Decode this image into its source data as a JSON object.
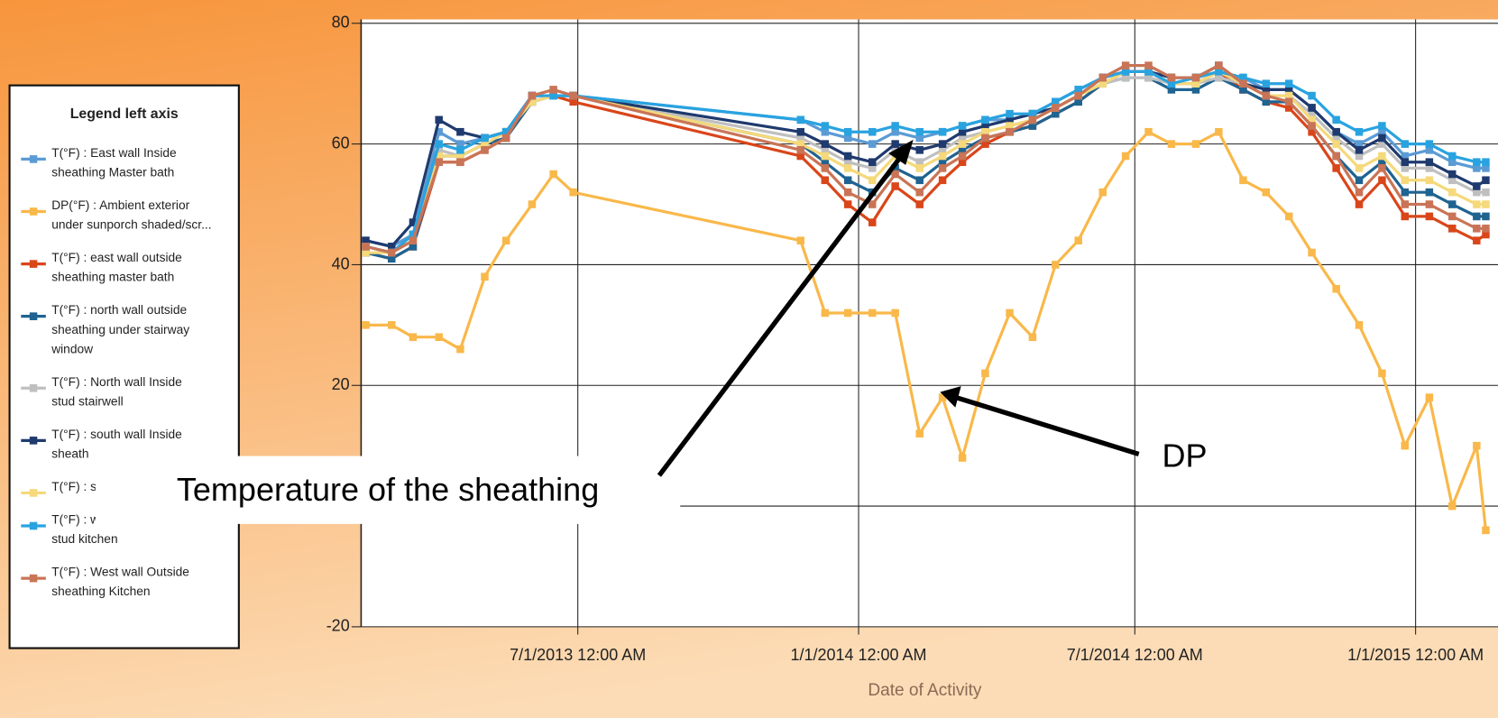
{
  "chart_data": {
    "type": "line",
    "legend_title": "Legend left axis",
    "xlabel": "Date of Activity",
    "annotations": [
      "Temperature of the sheathing",
      "DP"
    ],
    "xlim": [
      "2013-02-09",
      "2015-02-24"
    ],
    "xticks": [
      {
        "value": "2013-07-01",
        "label": "7/1/2013 12:00 AM"
      },
      {
        "value": "2014-01-01",
        "label": "1/1/2014 12:00 AM"
      },
      {
        "value": "2014-07-01",
        "label": "7/1/2014 12:00 AM"
      },
      {
        "value": "2015-01-01",
        "label": "1/1/2015 12:00 AM"
      }
    ],
    "ylim": [
      -20,
      80
    ],
    "yticks": [
      -20,
      0,
      20,
      40,
      60,
      80
    ],
    "grid": true,
    "x": [
      "2013-02-12",
      "2013-03-01",
      "2013-03-15",
      "2013-04-01",
      "2013-04-15",
      "2013-05-01",
      "2013-05-15",
      "2013-06-01",
      "2013-06-15",
      "2013-06-28",
      "2013-11-24",
      "2013-12-10",
      "2013-12-25",
      "2014-01-10",
      "2014-01-25",
      "2014-02-10",
      "2014-02-25",
      "2014-03-10",
      "2014-03-25",
      "2014-04-10",
      "2014-04-25",
      "2014-05-10",
      "2014-05-25",
      "2014-06-10",
      "2014-06-25",
      "2014-07-10",
      "2014-07-25",
      "2014-08-10",
      "2014-08-25",
      "2014-09-10",
      "2014-09-25",
      "2014-10-10",
      "2014-10-25",
      "2014-11-10",
      "2014-11-25",
      "2014-12-10",
      "2014-12-25",
      "2015-01-10",
      "2015-01-25",
      "2015-02-10",
      "2015-02-16"
    ],
    "series": [
      {
        "name": "T(°F) : East wall Inside sheathing Master bath",
        "color": "#5b9bd5",
        "values": [
          44,
          43,
          45,
          62,
          60,
          61,
          62,
          68,
          68,
          68,
          64,
          62,
          61,
          60,
          62,
          61,
          62,
          63,
          64,
          64,
          65,
          67,
          69,
          71,
          72,
          72,
          71,
          71,
          72,
          71,
          69,
          69,
          66,
          62,
          60,
          62,
          58,
          59,
          57,
          56,
          56
        ]
      },
      {
        "name": "DP(°F) : Ambient exterior under sunporch shaded/scr...",
        "color": "#f9b84a",
        "values": [
          30,
          30,
          28,
          28,
          26,
          38,
          44,
          50,
          55,
          52,
          44,
          32,
          32,
          32,
          32,
          12,
          18,
          8,
          22,
          32,
          28,
          40,
          44,
          52,
          58,
          62,
          60,
          60,
          62,
          54,
          52,
          48,
          42,
          36,
          30,
          22,
          10,
          18,
          0,
          10,
          -4
        ]
      },
      {
        "name": "T(°F) : east wall outside sheathing master bath",
        "color": "#d9461a",
        "values": [
          42,
          41,
          43,
          57,
          57,
          59,
          61,
          67,
          68,
          67,
          58,
          54,
          50,
          47,
          53,
          50,
          54,
          57,
          60,
          62,
          63,
          65,
          67,
          70,
          72,
          72,
          70,
          70,
          72,
          69,
          67,
          66,
          62,
          56,
          50,
          54,
          48,
          48,
          46,
          44,
          45
        ]
      },
      {
        "name": "T(°F) : north wall outside sheathing under stairway window",
        "color": "#1f6391",
        "values": [
          42,
          41,
          43,
          58,
          58,
          60,
          61,
          67,
          68,
          68,
          60,
          57,
          54,
          52,
          56,
          54,
          57,
          59,
          61,
          62,
          63,
          65,
          67,
          70,
          71,
          71,
          69,
          69,
          71,
          69,
          67,
          67,
          63,
          58,
          54,
          57,
          52,
          52,
          50,
          48,
          48
        ]
      },
      {
        "name": "T(°F) : North wall Inside stud stairwell",
        "color": "#bfbfbf",
        "values": [
          43,
          42,
          44,
          59,
          58,
          60,
          62,
          67,
          68,
          68,
          61,
          59,
          57,
          56,
          59,
          57,
          59,
          61,
          62,
          63,
          64,
          66,
          68,
          70,
          71,
          71,
          70,
          70,
          71,
          70,
          68,
          68,
          65,
          61,
          58,
          60,
          56,
          56,
          54,
          52,
          52
        ]
      },
      {
        "name": "T(°F) : south wall Inside sheath",
        "color": "#1f3a6e",
        "values": [
          44,
          43,
          47,
          64,
          62,
          61,
          62,
          68,
          68,
          68,
          62,
          60,
          58,
          57,
          60,
          59,
          60,
          62,
          63,
          64,
          65,
          66,
          68,
          71,
          72,
          72,
          71,
          71,
          73,
          70,
          69,
          69,
          66,
          62,
          59,
          61,
          57,
          57,
          55,
          53,
          54
        ]
      },
      {
        "name": "T(°F) : sheath",
        "color": "#f5d97a",
        "values": [
          42,
          42,
          44,
          58,
          58,
          60,
          62,
          67,
          68,
          68,
          60,
          58,
          56,
          54,
          58,
          56,
          58,
          60,
          62,
          63,
          64,
          66,
          68,
          70,
          72,
          72,
          70,
          70,
          72,
          70,
          68,
          68,
          64,
          60,
          56,
          58,
          54,
          54,
          52,
          50,
          50
        ]
      },
      {
        "name": "T(°F) : west wall inside stud kitchen",
        "color": "#29a3e0",
        "values": [
          43,
          42,
          45,
          60,
          59,
          61,
          62,
          68,
          68,
          68,
          64,
          63,
          62,
          62,
          63,
          62,
          62,
          63,
          64,
          65,
          65,
          67,
          69,
          71,
          72,
          72,
          70,
          71,
          72,
          71,
          70,
          70,
          68,
          64,
          62,
          63,
          60,
          60,
          58,
          57,
          57
        ]
      },
      {
        "name": "T(°F) : West wall Outside sheathing Kitchen",
        "color": "#c97456",
        "values": [
          43,
          42,
          44,
          57,
          57,
          59,
          61,
          68,
          69,
          68,
          59,
          56,
          52,
          50,
          55,
          52,
          56,
          58,
          61,
          62,
          64,
          66,
          68,
          71,
          73,
          73,
          71,
          71,
          73,
          70,
          68,
          67,
          63,
          58,
          52,
          56,
          50,
          50,
          48,
          46,
          46
        ]
      }
    ]
  }
}
